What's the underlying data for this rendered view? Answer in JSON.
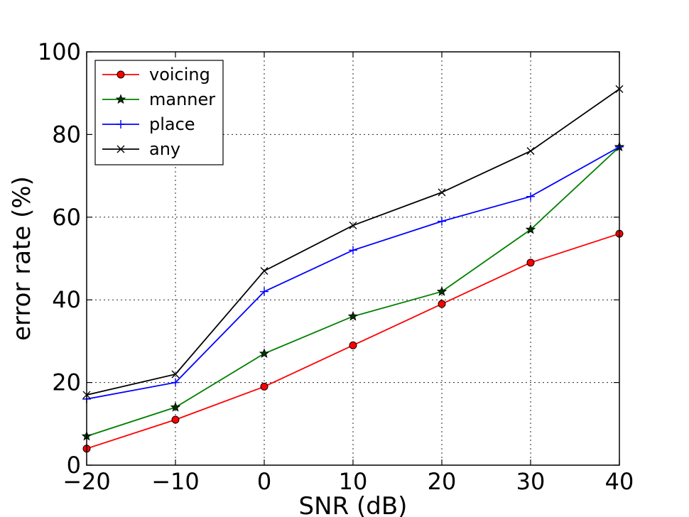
{
  "chart_data": {
    "type": "line",
    "title": "",
    "xlabel": "SNR (dB)",
    "ylabel": "error rate (%)",
    "xlim": [
      -20,
      40
    ],
    "ylim": [
      0,
      100
    ],
    "xticks": [
      "−20",
      "−10",
      "0",
      "10",
      "20",
      "30",
      "40"
    ],
    "yticks": [
      "0",
      "20",
      "40",
      "60",
      "80",
      "100"
    ],
    "x": [
      -20,
      -10,
      0,
      10,
      20,
      30,
      40
    ],
    "grid": true,
    "legend_position": "top-left",
    "series": [
      {
        "name": "voicing",
        "color": "#ff0000",
        "marker": "circle",
        "values": [
          4,
          11,
          19,
          29,
          39,
          49,
          56
        ]
      },
      {
        "name": "manner",
        "color": "#008000",
        "marker": "star",
        "values": [
          7,
          14,
          27,
          36,
          42,
          57,
          77
        ]
      },
      {
        "name": "place",
        "color": "#0000ff",
        "marker": "plus",
        "values": [
          16,
          20,
          42,
          52,
          59,
          65,
          77
        ]
      },
      {
        "name": "any",
        "color": "#000000",
        "marker": "x",
        "values": [
          17,
          22,
          47,
          58,
          66,
          76,
          91
        ]
      }
    ]
  }
}
